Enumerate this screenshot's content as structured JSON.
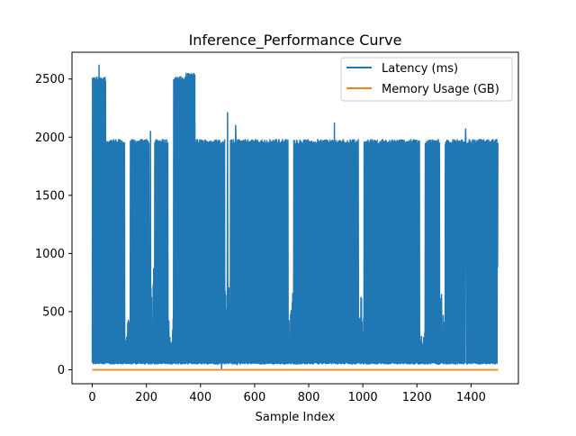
{
  "chart_data": {
    "type": "line",
    "title": "Inference_Performance Curve",
    "xlabel": "Sample Index",
    "ylabel": "",
    "xlim": [
      -75,
      1575
    ],
    "ylim": [
      -120,
      2730
    ],
    "x_ticks": [
      0,
      200,
      400,
      600,
      800,
      1000,
      1200,
      1400
    ],
    "y_ticks": [
      0,
      500,
      1000,
      1500,
      2000,
      2500
    ],
    "grid": false,
    "legend": "top-right",
    "n_samples": 1500,
    "series": [
      {
        "name": "Latency (ms)",
        "color": "#1f77b4",
        "low_values": [
          50,
          1000
        ],
        "high_segments": [
          {
            "x": [
              0,
              50
            ],
            "value": 2500
          },
          {
            "x": [
              50,
              300
            ],
            "value": 1960
          },
          {
            "x": [
              300,
              345
            ],
            "value": 2500
          },
          {
            "x": [
              345,
              380
            ],
            "value": 2530
          },
          {
            "x": [
              380,
              1500
            ],
            "value": 1960
          }
        ],
        "peaks": [
          {
            "x": 25,
            "y": 2620
          },
          {
            "x": 215,
            "y": 2050
          },
          {
            "x": 500,
            "y": 2210
          },
          {
            "x": 530,
            "y": 2100
          },
          {
            "x": 895,
            "y": 2120
          },
          {
            "x": 1380,
            "y": 2070
          }
        ],
        "gaps": [
          {
            "x": [
              120,
              140
            ],
            "y": 400
          },
          {
            "x": [
              210,
              230
            ],
            "y": 1000
          },
          {
            "x": [
              280,
              300
            ],
            "y": 500
          },
          {
            "x": [
              490,
              510
            ],
            "y": 700
          },
          {
            "x": [
              725,
              745
            ],
            "y": 700
          },
          {
            "x": [
              985,
              1005
            ],
            "y": 600
          },
          {
            "x": [
              1210,
              1230
            ],
            "y": 300
          },
          {
            "x": [
              1285,
              1305
            ],
            "y": 600
          }
        ]
      },
      {
        "name": "Memory Usage (GB)",
        "color": "#ff7f0e",
        "x": [
          0,
          1500
        ],
        "values": [
          0,
          0
        ]
      }
    ]
  }
}
